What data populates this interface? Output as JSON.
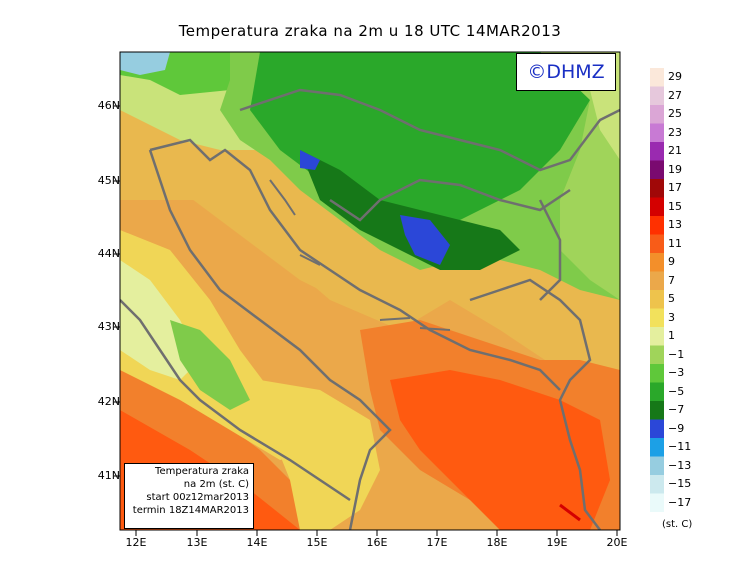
{
  "title": "Temperatura zraka na 2m u 18 UTC 14MAR2013",
  "watermark": "©DHMZ",
  "info_box": {
    "line1": "Temperatura zraka",
    "line2": "na 2m (st. C)",
    "line3": "start 00z12mar2013",
    "line4": "termin 18Z14MAR2013"
  },
  "lon_labels": [
    "12E",
    "13E",
    "14E",
    "15E",
    "16E",
    "17E",
    "18E",
    "19E",
    "20E"
  ],
  "lat_labels": [
    "46N",
    "45N",
    "44N",
    "43N",
    "42N",
    "41N"
  ],
  "colorbar": {
    "labels": [
      "29",
      "27",
      "25",
      "23",
      "21",
      "19",
      "17",
      "15",
      "13",
      "11",
      "9",
      "7",
      "5",
      "3",
      "1",
      "−1",
      "−3",
      "−5",
      "−7",
      "−9",
      "−11",
      "−13",
      "−15",
      "−17"
    ],
    "colors": [
      "#fbe8da",
      "#e6c8dc",
      "#dba6d6",
      "#c87ad4",
      "#9a2ab0",
      "#7a0a70",
      "#a00808",
      "#d40000",
      "#ff3000",
      "#f85c18",
      "#f38f2a",
      "#eba84a",
      "#eec34c",
      "#f2e15c",
      "#e4ef9e",
      "#a0d45a",
      "#5fc83a",
      "#2aa82a",
      "#167818",
      "#2b47d8",
      "#1ca0e6",
      "#96cde0",
      "#cce9ee",
      "#eafafa"
    ],
    "units": "(st. C)"
  },
  "colors": {
    "land_border": "#6f6f6f",
    "warm_base": "#e9ba4e",
    "hot": "#ff5a10",
    "mild": "#f0d656",
    "cold_green": "#3fb03a"
  }
}
